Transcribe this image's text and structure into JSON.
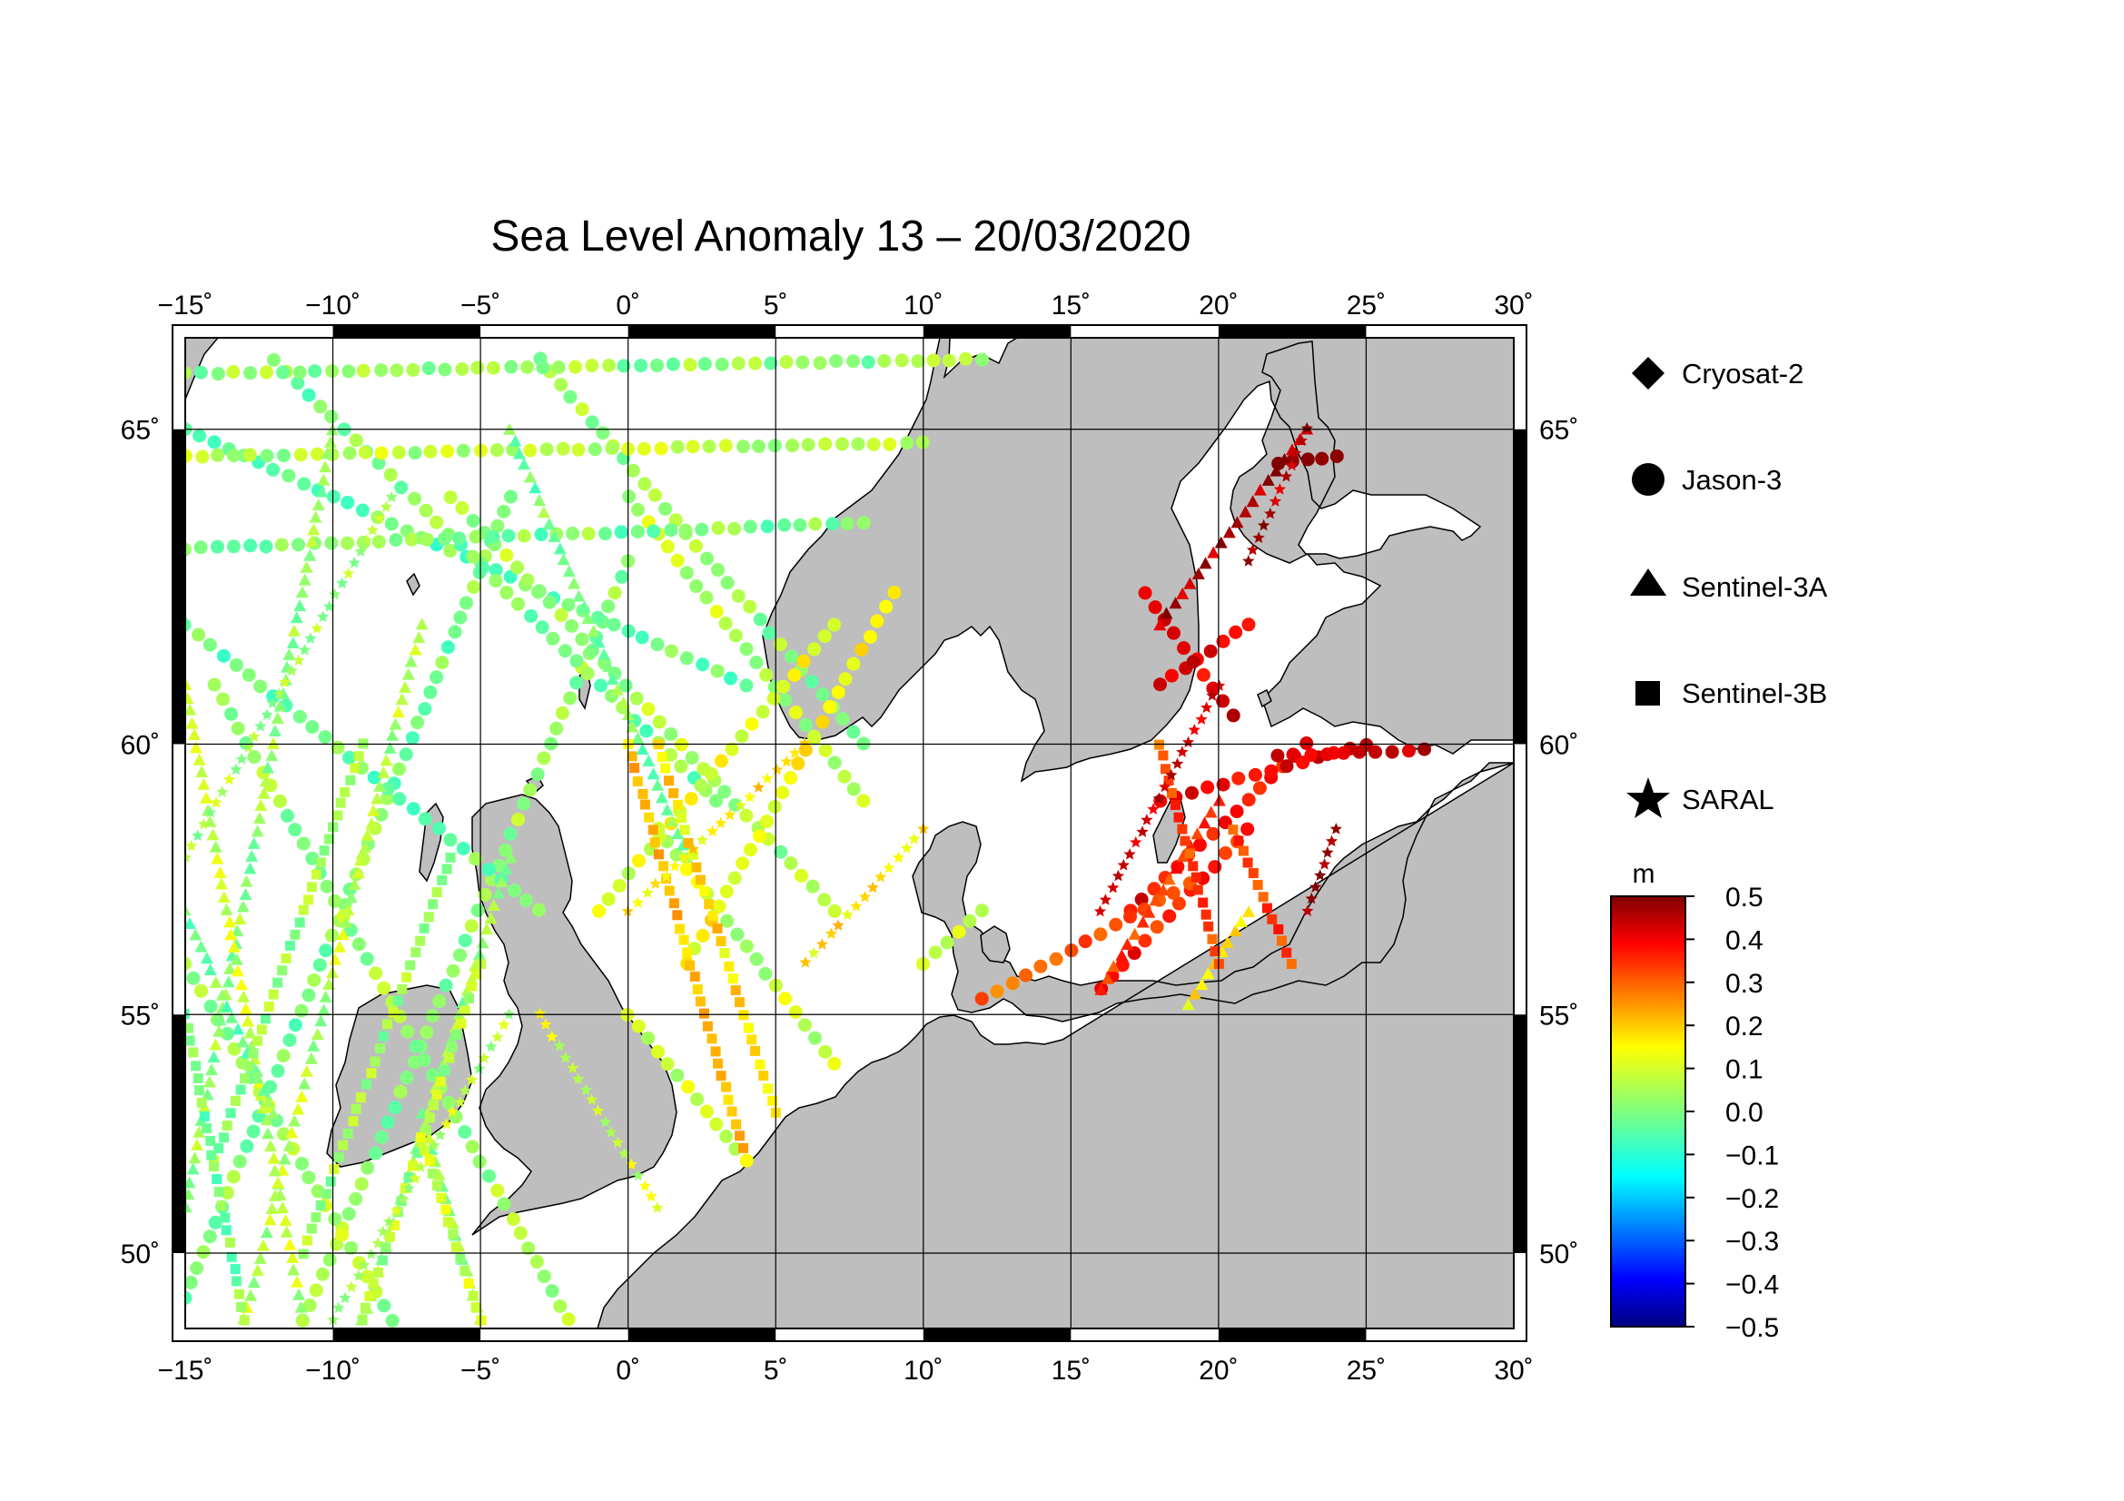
{
  "chart_data": {
    "type": "map-scatter",
    "title": "Sea Level Anomaly 13 – 20/03/2020",
    "lon_range": [
      -15,
      30
    ],
    "lat_range": [
      48.3,
      66.3
    ],
    "lon_ticks": [
      "−15˚",
      "−10˚",
      "−5˚",
      "0˚",
      "5˚",
      "10˚",
      "15˚",
      "20˚",
      "25˚",
      "30˚"
    ],
    "lon_tick_values": [
      -15,
      -10,
      -5,
      0,
      5,
      10,
      15,
      20,
      25,
      30
    ],
    "lat_ticks": [
      "50˚",
      "55˚",
      "60˚",
      "65˚"
    ],
    "lat_tick_values": [
      50,
      55,
      60,
      65
    ],
    "grid": true,
    "legend": {
      "position": "right",
      "items": [
        {
          "label": "Cryosat-2",
          "symbol": "diamond"
        },
        {
          "label": "Jason-3",
          "symbol": "circle"
        },
        {
          "label": "Sentinel-3A",
          "symbol": "triangle"
        },
        {
          "label": "Sentinel-3B",
          "symbol": "square"
        },
        {
          "label": "SARAL",
          "symbol": "star"
        }
      ]
    },
    "colorbar": {
      "unit": "m",
      "min": -0.5,
      "max": 0.5,
      "tick_values": [
        0.5,
        0.4,
        0.3,
        0.2,
        0.1,
        0.0,
        -0.1,
        -0.2,
        -0.3,
        -0.4,
        -0.5
      ],
      "tick_labels": [
        "0.5",
        "0.4",
        "0.3",
        "0.2",
        "0.1",
        "0.0",
        "−0.1",
        "−0.2",
        "−0.3",
        "−0.4",
        "−0.5"
      ],
      "colormap": "jet"
    },
    "colors": {
      "land": "#bebebe",
      "sea": "#ffffff",
      "frame": "#000000"
    },
    "tracks": [
      {
        "mission": "Jason-3",
        "start": [
          -15,
          49
        ],
        "end": [
          -4,
          64
        ],
        "value": 0.0
      },
      {
        "mission": "Jason-3",
        "start": [
          -11,
          48.5
        ],
        "end": [
          0,
          63
        ],
        "value": 0.02
      },
      {
        "mission": "Jason-3",
        "start": [
          -14,
          61
        ],
        "end": [
          -2,
          48.5
        ],
        "value": 0.03
      },
      {
        "mission": "Jason-3",
        "start": [
          -15,
          56
        ],
        "end": [
          -8,
          48.5
        ],
        "value": 0.04
      },
      {
        "mission": "Jason-3",
        "start": [
          -15,
          65
        ],
        "end": [
          4,
          61
        ],
        "value": -0.02
      },
      {
        "mission": "Jason-3",
        "start": [
          -3,
          66
        ],
        "end": [
          8,
          60
        ],
        "value": 0.02
      },
      {
        "mission": "Jason-3",
        "start": [
          0,
          64
        ],
        "end": [
          8,
          59
        ],
        "value": 0.05
      },
      {
        "mission": "Jason-3",
        "start": [
          -12,
          66
        ],
        "end": [
          3,
          59
        ],
        "value": 0.0
      },
      {
        "mission": "Jason-3",
        "start": [
          -6,
          64
        ],
        "end": [
          7,
          57
        ],
        "value": 0.04
      },
      {
        "mission": "Jason-3",
        "start": [
          -15,
          62
        ],
        "end": [
          -3,
          57
        ],
        "value": -0.02
      },
      {
        "mission": "Jason-3",
        "start": [
          1,
          58.5
        ],
        "end": [
          7,
          54
        ],
        "value": 0.07
      },
      {
        "mission": "Jason-3",
        "start": [
          -1,
          57
        ],
        "end": [
          7,
          62
        ],
        "value": 0.1
      },
      {
        "mission": "Jason-3",
        "start": [
          2,
          56
        ],
        "end": [
          9,
          62.5
        ],
        "value": 0.12
      },
      {
        "mission": "Jason-3",
        "start": [
          0,
          55
        ],
        "end": [
          4,
          52
        ],
        "value": 0.08
      },
      {
        "mission": "Jason-3",
        "start": [
          -15,
          65.8
        ],
        "end": [
          12,
          66
        ],
        "value": 0.02
      },
      {
        "mission": "Jason-3",
        "start": [
          -15,
          64.6
        ],
        "end": [
          10,
          64.8
        ],
        "value": 0.05
      },
      {
        "mission": "Jason-3",
        "start": [
          -15,
          63.2
        ],
        "end": [
          8,
          63.6
        ],
        "value": 0.0
      },
      {
        "mission": "Jason-3",
        "start": [
          18,
          61
        ],
        "end": [
          21,
          62
        ],
        "value": 0.4
      },
      {
        "mission": "Jason-3",
        "start": [
          17.5,
          62.5
        ],
        "end": [
          20.5,
          60.5
        ],
        "value": 0.4
      },
      {
        "mission": "Jason-3",
        "start": [
          22,
          64.5
        ],
        "end": [
          24,
          64.6
        ],
        "value": 0.48
      },
      {
        "mission": "Jason-3",
        "start": [
          17,
          57
        ],
        "end": [
          23,
          60
        ],
        "value": 0.38
      },
      {
        "mission": "Jason-3",
        "start": [
          16,
          55.5
        ],
        "end": [
          21,
          58.5
        ],
        "value": 0.35
      },
      {
        "mission": "Jason-3",
        "start": [
          18,
          59
        ],
        "end": [
          25,
          60
        ],
        "value": 0.4
      },
      {
        "mission": "Jason-3",
        "start": [
          12,
          55.3
        ],
        "end": [
          19,
          57.5
        ],
        "value": 0.28
      },
      {
        "mission": "Jason-3",
        "start": [
          22,
          59.8
        ],
        "end": [
          27,
          59.9
        ],
        "value": 0.42
      },
      {
        "mission": "Jason-3",
        "start": [
          10,
          56
        ],
        "end": [
          12,
          57
        ],
        "value": 0.05
      },
      {
        "mission": "Sentinel-3A",
        "start": [
          -15,
          51
        ],
        "end": [
          -10,
          65
        ],
        "value": 0.02
      },
      {
        "mission": "Sentinel-3A",
        "start": [
          -13,
          48.5
        ],
        "end": [
          -7,
          62
        ],
        "value": 0.05
      },
      {
        "mission": "Sentinel-3A",
        "start": [
          -9,
          48.5
        ],
        "end": [
          -4,
          58
        ],
        "value": 0.03
      },
      {
        "mission": "Sentinel-3A",
        "start": [
          -15,
          61
        ],
        "end": [
          -11,
          48.5
        ],
        "value": 0.06
      },
      {
        "mission": "Sentinel-3A",
        "start": [
          -4,
          65
        ],
        "end": [
          2,
          58
        ],
        "value": 0.0
      },
      {
        "mission": "Sentinel-3A",
        "start": [
          -15,
          57
        ],
        "end": [
          -12,
          53
        ],
        "value": 0.0
      },
      {
        "mission": "Sentinel-3A",
        "start": [
          -7,
          53
        ],
        "end": [
          -5,
          48.5
        ],
        "value": 0.02
      },
      {
        "mission": "Sentinel-3A",
        "start": [
          18,
          62
        ],
        "end": [
          23,
          65
        ],
        "value": 0.45
      },
      {
        "mission": "Sentinel-3A",
        "start": [
          16,
          55.5
        ],
        "end": [
          20,
          59
        ],
        "value": 0.32
      },
      {
        "mission": "Sentinel-3A",
        "start": [
          19,
          55.2
        ],
        "end": [
          21,
          57
        ],
        "value": 0.15
      },
      {
        "mission": "Sentinel-3B",
        "start": [
          -14,
          52
        ],
        "end": [
          -9,
          60
        ],
        "value": 0.02
      },
      {
        "mission": "Sentinel-3B",
        "start": [
          -11,
          50
        ],
        "end": [
          -6,
          58
        ],
        "value": 0.03
      },
      {
        "mission": "Sentinel-3B",
        "start": [
          -9,
          48.5
        ],
        "end": [
          -5,
          56
        ],
        "value": 0.04
      },
      {
        "mission": "Sentinel-3B",
        "start": [
          -5,
          48.5
        ],
        "end": [
          -7,
          52.5
        ],
        "value": 0.06
      },
      {
        "mission": "Sentinel-3B",
        "start": [
          0,
          60
        ],
        "end": [
          4,
          52
        ],
        "value": 0.18
      },
      {
        "mission": "Sentinel-3B",
        "start": [
          1,
          60
        ],
        "end": [
          5,
          53
        ],
        "value": 0.15
      },
      {
        "mission": "Sentinel-3B",
        "start": [
          -15,
          55
        ],
        "end": [
          -13,
          48.5
        ],
        "value": 0.0
      },
      {
        "mission": "Sentinel-3B",
        "start": [
          18,
          60
        ],
        "end": [
          20,
          56
        ],
        "value": 0.3
      },
      {
        "mission": "Sentinel-3B",
        "start": [
          20.5,
          58.5
        ],
        "end": [
          22.5,
          56
        ],
        "value": 0.32
      },
      {
        "mission": "SARAL",
        "start": [
          -15,
          58
        ],
        "end": [
          -8,
          64
        ],
        "value": 0.04
      },
      {
        "mission": "SARAL",
        "start": [
          -10,
          48.5
        ],
        "end": [
          -4,
          55
        ],
        "value": 0.05
      },
      {
        "mission": "SARAL",
        "start": [
          0,
          57
        ],
        "end": [
          6,
          60
        ],
        "value": 0.14
      },
      {
        "mission": "SARAL",
        "start": [
          6,
          56
        ],
        "end": [
          10,
          58.5
        ],
        "value": 0.15
      },
      {
        "mission": "SARAL",
        "start": [
          16,
          57
        ],
        "end": [
          20,
          61
        ],
        "value": 0.42
      },
      {
        "mission": "SARAL",
        "start": [
          21,
          63
        ],
        "end": [
          23,
          65
        ],
        "value": 0.45
      },
      {
        "mission": "SARAL",
        "start": [
          23,
          57
        ],
        "end": [
          24,
          58.5
        ],
        "value": 0.48
      },
      {
        "mission": "SARAL",
        "start": [
          -3,
          55
        ],
        "end": [
          1,
          51
        ],
        "value": 0.08
      }
    ]
  }
}
